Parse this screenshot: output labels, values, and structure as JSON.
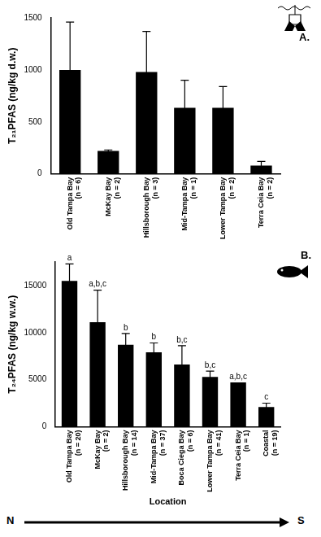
{
  "chart_data": [
    {
      "type": "bar",
      "panel_label": "A.",
      "ylabel": "T₂₁PFAS (ng/kg d.w.)",
      "categories": [
        "Old Tampa Bay (n = 6)",
        "McKay Bay (n = 2)",
        "Hillsborough Bay (n = 3)",
        "Mid-Tampa Bay (n = 1)",
        "Lower Tampa Bay (n = 2)",
        "Terra Ceia Bay (n = 2)"
      ],
      "values": [
        1000,
        220,
        980,
        635,
        635,
        80
      ],
      "errors": [
        460,
        10,
        390,
        265,
        205,
        40
      ],
      "color": "#000000",
      "ylim": [
        0,
        1500
      ],
      "yticks": [
        0,
        500,
        1000,
        1500
      ],
      "grid": false
    },
    {
      "type": "bar",
      "panel_label": "B.",
      "ylabel": "T₂₄PFAS (ng/kg w.w.)",
      "xlabel": "Location",
      "direction_labels": [
        "N",
        "S"
      ],
      "categories": [
        "Old Tampa Bay (n = 20)",
        "McKay Bay (n = 2)",
        "Hillsborough Bay (n = 14)",
        "Mid-Tampa Bay (n = 37)",
        "Boca Ciega Bay (n = 6)",
        "Lower Tampa Bay (n = 41)",
        "Terra Ceia Bay (n = 1)",
        "Coastal (n = 19)"
      ],
      "values": [
        15500,
        11100,
        8700,
        7900,
        6600,
        5300,
        4700,
        2100
      ],
      "errors": [
        1800,
        3400,
        1200,
        1000,
        2000,
        600,
        null,
        400
      ],
      "annotations": [
        "a",
        "a,b,c",
        "b",
        "b",
        "b,c",
        "b,c",
        "a,b,c",
        "c"
      ],
      "color": "#000000",
      "ylim": [
        0,
        17500
      ],
      "yticks": [
        0,
        5000,
        10000,
        15000
      ],
      "grid": false
    }
  ]
}
